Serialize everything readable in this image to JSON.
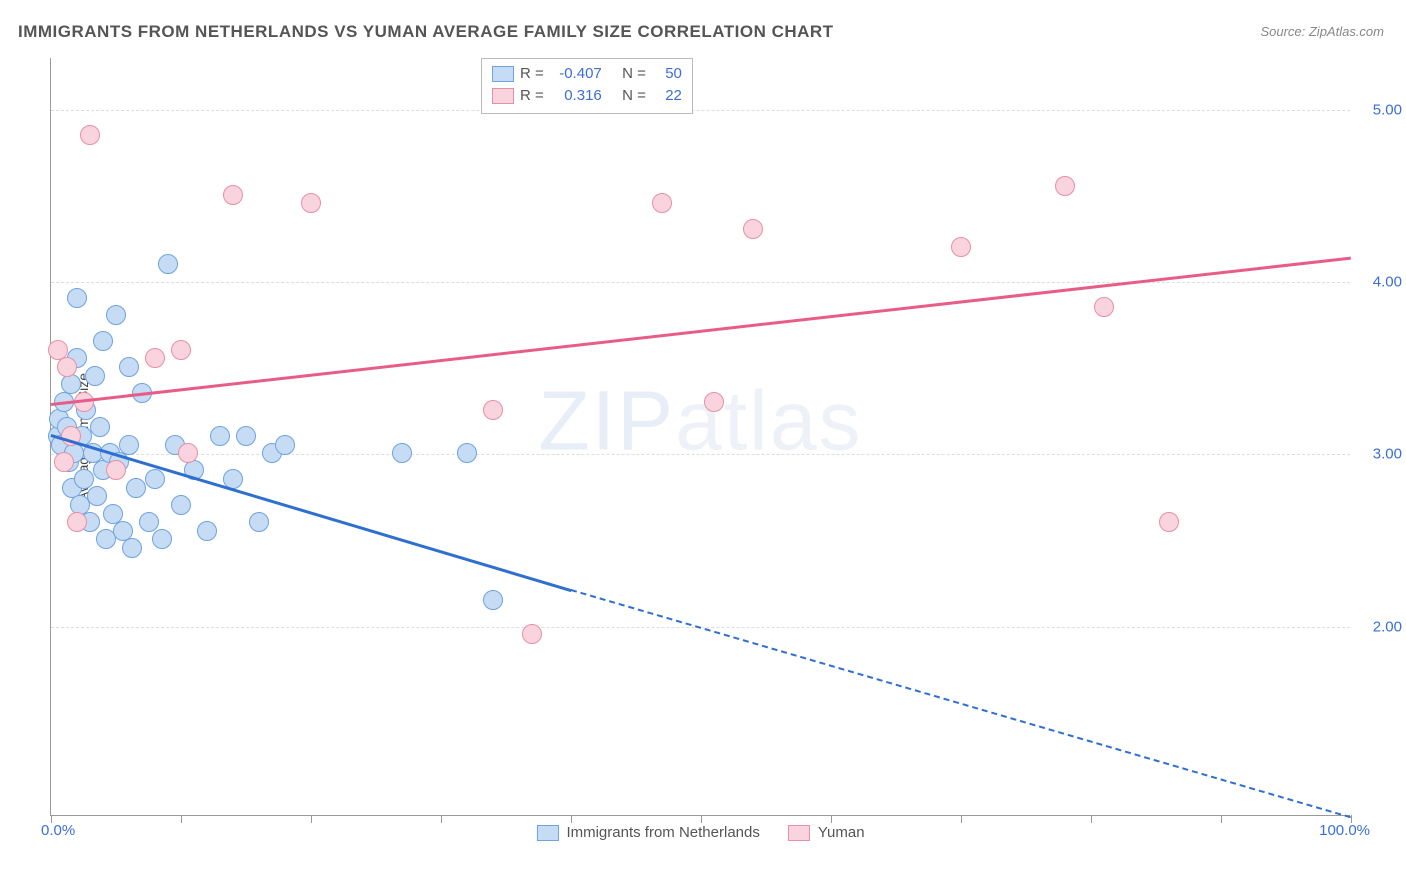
{
  "title": "IMMIGRANTS FROM NETHERLANDS VS YUMAN AVERAGE FAMILY SIZE CORRELATION CHART",
  "source_prefix": "Source: ",
  "source": "ZipAtlas.com",
  "watermark_bold": "ZIP",
  "watermark_thin": "atlas",
  "chart": {
    "type": "scatter",
    "y_axis_label": "Average Family Size",
    "x_min_label": "0.0%",
    "x_max_label": "100.0%",
    "xlim": [
      0,
      100
    ],
    "ylim": [
      0.9,
      5.3
    ],
    "y_gridlines": [
      2.0,
      3.0,
      4.0,
      5.0
    ],
    "y_tick_labels": [
      "2.00",
      "3.00",
      "4.00",
      "5.00"
    ],
    "x_ticks": [
      0,
      10,
      20,
      30,
      40,
      50,
      60,
      70,
      80,
      90,
      100
    ],
    "background_color": "#ffffff",
    "grid_color": "#dddddd",
    "axis_color": "#999999",
    "marker_radius": 10,
    "series": [
      {
        "name": "Immigrants from Netherlands",
        "fill": "#c6dbf4",
        "stroke": "#6fa3e0",
        "line_color": "#2f6fd0",
        "R_label": "R =",
        "R": "-0.407",
        "N_label": "N =",
        "N": "50",
        "trend": {
          "x1": 0,
          "y1": 3.12,
          "x2_solid": 40,
          "y2_solid": 2.22,
          "x2": 100,
          "y2": 0.9
        },
        "points": [
          [
            0.5,
            3.1
          ],
          [
            0.6,
            3.2
          ],
          [
            0.8,
            3.05
          ],
          [
            1.0,
            3.3
          ],
          [
            1.2,
            3.15
          ],
          [
            1.4,
            2.95
          ],
          [
            1.5,
            3.4
          ],
          [
            1.6,
            2.8
          ],
          [
            1.8,
            3.0
          ],
          [
            2.0,
            3.55
          ],
          [
            2.2,
            2.7
          ],
          [
            2.4,
            3.1
          ],
          [
            2.5,
            2.85
          ],
          [
            2.7,
            3.25
          ],
          [
            3.0,
            2.6
          ],
          [
            3.2,
            3.0
          ],
          [
            3.4,
            3.45
          ],
          [
            3.5,
            2.75
          ],
          [
            3.8,
            3.15
          ],
          [
            4.0,
            2.9
          ],
          [
            4.2,
            2.5
          ],
          [
            4.5,
            3.0
          ],
          [
            4.8,
            2.65
          ],
          [
            5.0,
            3.8
          ],
          [
            5.2,
            2.95
          ],
          [
            5.5,
            2.55
          ],
          [
            6.0,
            3.05
          ],
          [
            6.2,
            2.45
          ],
          [
            6.5,
            2.8
          ],
          [
            7.0,
            3.35
          ],
          [
            7.5,
            2.6
          ],
          [
            8.0,
            2.85
          ],
          [
            8.5,
            2.5
          ],
          [
            9.0,
            4.1
          ],
          [
            9.5,
            3.05
          ],
          [
            10.0,
            2.7
          ],
          [
            11.0,
            2.9
          ],
          [
            12.0,
            2.55
          ],
          [
            13.0,
            3.1
          ],
          [
            14.0,
            2.85
          ],
          [
            15.0,
            3.1
          ],
          [
            16.0,
            2.6
          ],
          [
            17.0,
            3.0
          ],
          [
            18.0,
            3.05
          ],
          [
            2.0,
            3.9
          ],
          [
            4.0,
            3.65
          ],
          [
            6.0,
            3.5
          ],
          [
            27.0,
            3.0
          ],
          [
            32.0,
            3.0
          ],
          [
            34.0,
            2.15
          ]
        ]
      },
      {
        "name": "Yuman",
        "fill": "#f9d4de",
        "stroke": "#e88fa8",
        "line_color": "#e85d87",
        "R_label": "R =",
        "R": "0.316",
        "N_label": "N =",
        "N": "22",
        "trend": {
          "x1": 0,
          "y1": 3.3,
          "x2": 100,
          "y2": 4.15
        },
        "points": [
          [
            0.5,
            3.6
          ],
          [
            1.0,
            2.95
          ],
          [
            1.2,
            3.5
          ],
          [
            1.5,
            3.1
          ],
          [
            2.0,
            2.6
          ],
          [
            2.5,
            3.3
          ],
          [
            3.0,
            4.85
          ],
          [
            8.0,
            3.55
          ],
          [
            10.0,
            3.6
          ],
          [
            10.5,
            3.0
          ],
          [
            14.0,
            4.5
          ],
          [
            20.0,
            4.45
          ],
          [
            34.0,
            3.25
          ],
          [
            37.0,
            1.95
          ],
          [
            47.0,
            4.45
          ],
          [
            51.0,
            3.3
          ],
          [
            54.0,
            4.3
          ],
          [
            70.0,
            4.2
          ],
          [
            78.0,
            4.55
          ],
          [
            81.0,
            3.85
          ],
          [
            86.0,
            2.6
          ],
          [
            5.0,
            2.9
          ]
        ]
      }
    ]
  }
}
